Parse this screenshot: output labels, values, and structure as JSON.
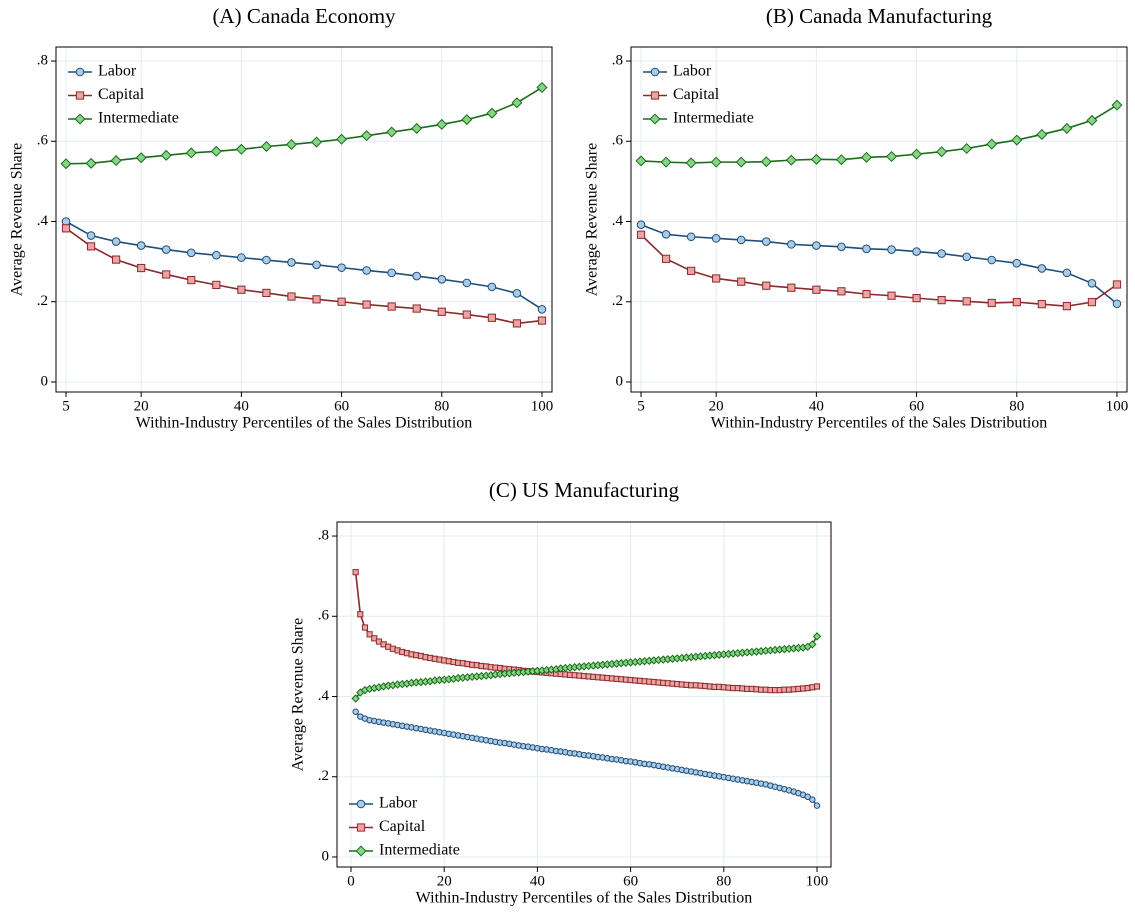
{
  "chart_data": [
    {
      "type": "line",
      "title": "(A) Canada Economy",
      "xlabel": "Within-Industry Percentiles of the Sales Distribution",
      "ylabel": "Average Revenue Share",
      "x": [
        5,
        10,
        15,
        20,
        25,
        30,
        35,
        40,
        45,
        50,
        55,
        60,
        65,
        70,
        75,
        80,
        85,
        90,
        95,
        100
      ],
      "xlim": [
        3,
        102
      ],
      "xticks": [
        5,
        20,
        40,
        60,
        80,
        100
      ],
      "ylim": [
        -0.025,
        0.835
      ],
      "yticks": [
        0,
        {
          "value": 0.2,
          "label": ".2"
        },
        {
          "value": 0.4,
          "label": ".4"
        },
        {
          "value": 0.6,
          "label": ".6"
        },
        {
          "value": 0.8,
          "label": ".8"
        }
      ],
      "grid": true,
      "legend": "top-left",
      "series": [
        {
          "name": "Labor",
          "color": "#1f4e79",
          "marker_fill": "#a9cbe6",
          "marker": "circle",
          "values": [
            0.4,
            0.365,
            0.35,
            0.34,
            0.33,
            0.322,
            0.316,
            0.31,
            0.304,
            0.298,
            0.292,
            0.285,
            0.278,
            0.272,
            0.264,
            0.256,
            0.247,
            0.237,
            0.221,
            0.181
          ]
        },
        {
          "name": "Capital",
          "color": "#8b2a2a",
          "marker_fill": "#eba3a3",
          "marker": "square",
          "values": [
            0.383,
            0.338,
            0.305,
            0.284,
            0.268,
            0.254,
            0.242,
            0.23,
            0.222,
            0.213,
            0.206,
            0.2,
            0.193,
            0.188,
            0.183,
            0.175,
            0.168,
            0.16,
            0.146,
            0.153
          ]
        },
        {
          "name": "Intermediate",
          "color": "#1a6b1a",
          "marker_fill": "#86d486",
          "marker": "diamond",
          "values": [
            0.544,
            0.545,
            0.552,
            0.559,
            0.565,
            0.571,
            0.575,
            0.58,
            0.587,
            0.592,
            0.598,
            0.605,
            0.614,
            0.623,
            0.632,
            0.642,
            0.654,
            0.67,
            0.696,
            0.734
          ]
        }
      ]
    },
    {
      "type": "line",
      "title": "(B) Canada Manufacturing",
      "xlabel": "Within-Industry Percentiles of the Sales Distribution",
      "ylabel": "Average Revenue Share",
      "x": [
        5,
        10,
        15,
        20,
        25,
        30,
        35,
        40,
        45,
        50,
        55,
        60,
        65,
        70,
        75,
        80,
        85,
        90,
        95,
        100
      ],
      "xlim": [
        3,
        102
      ],
      "xticks": [
        5,
        20,
        40,
        60,
        80,
        100
      ],
      "ylim": [
        -0.025,
        0.835
      ],
      "yticks": [
        0,
        {
          "value": 0.2,
          "label": ".2"
        },
        {
          "value": 0.4,
          "label": ".4"
        },
        {
          "value": 0.6,
          "label": ".6"
        },
        {
          "value": 0.8,
          "label": ".8"
        }
      ],
      "grid": true,
      "legend": "top-left",
      "series": [
        {
          "name": "Labor",
          "color": "#1f4e79",
          "marker_fill": "#a9cbe6",
          "marker": "circle",
          "values": [
            0.392,
            0.368,
            0.362,
            0.358,
            0.354,
            0.35,
            0.343,
            0.34,
            0.337,
            0.332,
            0.33,
            0.325,
            0.32,
            0.312,
            0.304,
            0.296,
            0.283,
            0.272,
            0.246,
            0.195
          ]
        },
        {
          "name": "Capital",
          "color": "#8b2a2a",
          "marker_fill": "#eba3a3",
          "marker": "square",
          "values": [
            0.367,
            0.307,
            0.277,
            0.258,
            0.25,
            0.24,
            0.235,
            0.23,
            0.226,
            0.219,
            0.215,
            0.209,
            0.204,
            0.201,
            0.197,
            0.199,
            0.194,
            0.189,
            0.199,
            0.243
          ]
        },
        {
          "name": "Intermediate",
          "color": "#1a6b1a",
          "marker_fill": "#86d486",
          "marker": "diamond",
          "values": [
            0.551,
            0.548,
            0.546,
            0.548,
            0.548,
            0.549,
            0.553,
            0.555,
            0.554,
            0.56,
            0.562,
            0.568,
            0.574,
            0.582,
            0.593,
            0.603,
            0.617,
            0.632,
            0.652,
            0.69
          ]
        }
      ]
    },
    {
      "type": "line",
      "title": "(C) US Manufacturing",
      "xlabel": "Within-Industry Percentiles of the Sales Distribution",
      "ylabel": "Average Revenue Share",
      "x": [
        1,
        2,
        3,
        4,
        5,
        6,
        7,
        8,
        9,
        10,
        11,
        12,
        13,
        14,
        15,
        16,
        17,
        18,
        19,
        20,
        21,
        22,
        23,
        24,
        25,
        26,
        27,
        28,
        29,
        30,
        31,
        32,
        33,
        34,
        35,
        36,
        37,
        38,
        39,
        40,
        41,
        42,
        43,
        44,
        45,
        46,
        47,
        48,
        49,
        50,
        51,
        52,
        53,
        54,
        55,
        56,
        57,
        58,
        59,
        60,
        61,
        62,
        63,
        64,
        65,
        66,
        67,
        68,
        69,
        70,
        71,
        72,
        73,
        74,
        75,
        76,
        77,
        78,
        79,
        80,
        81,
        82,
        83,
        84,
        85,
        86,
        87,
        88,
        89,
        90,
        91,
        92,
        93,
        94,
        95,
        96,
        97,
        98,
        99,
        100
      ],
      "xlim": [
        -3,
        103
      ],
      "xticks": [
        0,
        20,
        40,
        60,
        80,
        100
      ],
      "ylim": [
        -0.025,
        0.835
      ],
      "yticks": [
        0,
        {
          "value": 0.2,
          "label": ".2"
        },
        {
          "value": 0.4,
          "label": ".4"
        },
        {
          "value": 0.6,
          "label": ".6"
        },
        {
          "value": 0.8,
          "label": ".8"
        }
      ],
      "grid": true,
      "legend": "bottom-left",
      "series": [
        {
          "name": "Labor",
          "color": "#1f4e79",
          "marker_fill": "#a9cbe6",
          "marker": "circle",
          "values": [
            0.362,
            0.35,
            0.345,
            0.341,
            0.339,
            0.337,
            0.335,
            0.333,
            0.331,
            0.329,
            0.327,
            0.325,
            0.323,
            0.321,
            0.319,
            0.317,
            0.315,
            0.313,
            0.311,
            0.309,
            0.307,
            0.305,
            0.303,
            0.301,
            0.299,
            0.297,
            0.295,
            0.293,
            0.291,
            0.289,
            0.287,
            0.285,
            0.284,
            0.282,
            0.28,
            0.278,
            0.276,
            0.275,
            0.273,
            0.271,
            0.269,
            0.268,
            0.266,
            0.264,
            0.263,
            0.261,
            0.259,
            0.258,
            0.256,
            0.254,
            0.253,
            0.251,
            0.249,
            0.248,
            0.246,
            0.244,
            0.243,
            0.241,
            0.239,
            0.238,
            0.236,
            0.234,
            0.232,
            0.231,
            0.229,
            0.227,
            0.225,
            0.223,
            0.221,
            0.219,
            0.217,
            0.215,
            0.213,
            0.211,
            0.209,
            0.207,
            0.205,
            0.203,
            0.201,
            0.199,
            0.197,
            0.195,
            0.193,
            0.191,
            0.189,
            0.187,
            0.185,
            0.183,
            0.181,
            0.178,
            0.175,
            0.172,
            0.169,
            0.166,
            0.163,
            0.159,
            0.155,
            0.15,
            0.143,
            0.128
          ]
        },
        {
          "name": "Capital",
          "color": "#8b2a2a",
          "marker_fill": "#eba3a3",
          "marker": "square",
          "values": [
            0.71,
            0.605,
            0.572,
            0.555,
            0.545,
            0.537,
            0.53,
            0.524,
            0.519,
            0.515,
            0.511,
            0.508,
            0.505,
            0.503,
            0.501,
            0.498,
            0.496,
            0.494,
            0.492,
            0.49,
            0.488,
            0.486,
            0.484,
            0.483,
            0.481,
            0.479,
            0.478,
            0.476,
            0.475,
            0.473,
            0.472,
            0.471,
            0.469,
            0.468,
            0.467,
            0.466,
            0.464,
            0.463,
            0.462,
            0.461,
            0.46,
            0.459,
            0.458,
            0.457,
            0.456,
            0.455,
            0.454,
            0.453,
            0.452,
            0.451,
            0.45,
            0.449,
            0.448,
            0.447,
            0.446,
            0.445,
            0.444,
            0.443,
            0.442,
            0.441,
            0.44,
            0.439,
            0.438,
            0.437,
            0.436,
            0.435,
            0.434,
            0.433,
            0.432,
            0.431,
            0.43,
            0.429,
            0.428,
            0.428,
            0.427,
            0.426,
            0.425,
            0.424,
            0.424,
            0.423,
            0.422,
            0.421,
            0.421,
            0.42,
            0.419,
            0.419,
            0.418,
            0.417,
            0.417,
            0.416,
            0.416,
            0.416,
            0.417,
            0.417,
            0.418,
            0.419,
            0.42,
            0.421,
            0.423,
            0.425
          ]
        },
        {
          "name": "Intermediate",
          "color": "#1a6b1a",
          "marker_fill": "#86d486",
          "marker": "diamond",
          "values": [
            0.395,
            0.41,
            0.416,
            0.419,
            0.421,
            0.423,
            0.425,
            0.427,
            0.428,
            0.43,
            0.431,
            0.432,
            0.434,
            0.435,
            0.436,
            0.437,
            0.438,
            0.44,
            0.441,
            0.442,
            0.443,
            0.444,
            0.446,
            0.447,
            0.448,
            0.449,
            0.45,
            0.451,
            0.452,
            0.453,
            0.455,
            0.456,
            0.457,
            0.458,
            0.459,
            0.46,
            0.461,
            0.462,
            0.463,
            0.464,
            0.465,
            0.466,
            0.467,
            0.468,
            0.47,
            0.471,
            0.472,
            0.473,
            0.474,
            0.475,
            0.476,
            0.477,
            0.478,
            0.479,
            0.48,
            0.481,
            0.482,
            0.483,
            0.484,
            0.485,
            0.486,
            0.487,
            0.488,
            0.489,
            0.49,
            0.491,
            0.492,
            0.493,
            0.494,
            0.495,
            0.496,
            0.497,
            0.498,
            0.499,
            0.5,
            0.501,
            0.502,
            0.503,
            0.504,
            0.505,
            0.506,
            0.507,
            0.508,
            0.509,
            0.51,
            0.511,
            0.512,
            0.513,
            0.514,
            0.515,
            0.516,
            0.517,
            0.518,
            0.519,
            0.52,
            0.521,
            0.522,
            0.524,
            0.53,
            0.55
          ]
        }
      ]
    }
  ]
}
